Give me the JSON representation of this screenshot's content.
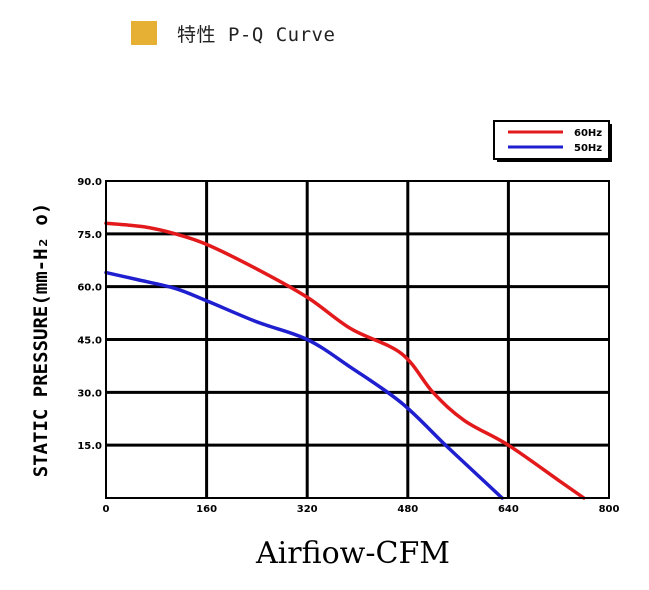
{
  "header": {
    "title": "特性 P-Q Curve",
    "icon": "square-icon",
    "icon_color": "#e6b034"
  },
  "chart_data": {
    "type": "line",
    "xlabel": "Airfiow-CFM",
    "ylabel": "STATIC PRESSURE(mm-H₂ o)",
    "xlim": [
      0,
      800
    ],
    "ylim": [
      0,
      90
    ],
    "xticks": [
      "0",
      "160",
      "320",
      "480",
      "640",
      "800"
    ],
    "yticks": [
      "15.0",
      "30.0",
      "45.0",
      "60.0",
      "75.0",
      "90.0"
    ],
    "grid": true,
    "legend_position": "top-right",
    "series": [
      {
        "name": "60Hz",
        "color": "#e31a1c",
        "x": [
          0,
          60,
          110,
          160,
          240,
          320,
          390,
          470,
          520,
          570,
          640,
          720,
          760
        ],
        "y": [
          78,
          77,
          75,
          72,
          65,
          57,
          48,
          41,
          30,
          22,
          15,
          5,
          0
        ]
      },
      {
        "name": "50Hz",
        "color": "#1f1fd0",
        "x": [
          0,
          50,
          110,
          160,
          240,
          320,
          390,
          470,
          540,
          600,
          630
        ],
        "y": [
          64,
          62,
          59.5,
          56,
          50,
          45,
          37,
          27,
          15,
          5,
          0
        ]
      }
    ]
  }
}
